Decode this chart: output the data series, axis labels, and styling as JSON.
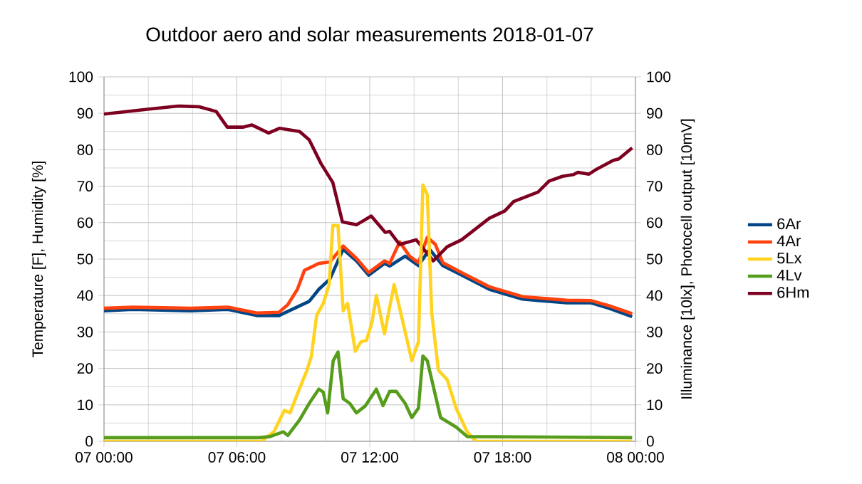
{
  "chart_data": {
    "type": "line",
    "title": "Outdoor aero and solar measurements 2018-01-07",
    "ylabel": "Temperature [F], Humidity [%]",
    "y2label": "Illuminance [10lx], Photocell output [10mV]",
    "xlim": [
      "2018-01-07T00:00",
      "2018-01-08T00:00"
    ],
    "xticks": [
      {
        "value": "2018-01-07T00:00",
        "label": "07 00:00"
      },
      {
        "value": "2018-01-07T06:00",
        "label": "07 06:00"
      },
      {
        "value": "2018-01-07T12:00",
        "label": "07 12:00"
      },
      {
        "value": "2018-01-07T18:00",
        "label": "07 18:00"
      },
      {
        "value": "2018-01-08T00:00",
        "label": "08 00:00"
      }
    ],
    "ylim": [
      0,
      100
    ],
    "yticks": [
      0,
      10,
      20,
      30,
      40,
      50,
      60,
      70,
      80,
      90,
      100
    ],
    "y2lim": [
      0,
      100
    ],
    "y2ticks": [
      0,
      10,
      20,
      30,
      40,
      50,
      60,
      70,
      80,
      90,
      100
    ],
    "grid": true,
    "legend": "right",
    "marker": "none",
    "line_style": "solid",
    "series": [
      {
        "name": "6Ar",
        "color": "#004586",
        "x": [
          "2018-01-07T00:00",
          "2018-01-07T01:18",
          "2018-01-07T03:54",
          "2018-01-07T05:36",
          "2018-01-07T06:54",
          "2018-01-07T07:54",
          "2018-01-07T08:36",
          "2018-01-07T09:16",
          "2018-01-07T09:42",
          "2018-01-07T10:12",
          "2018-01-07T10:48",
          "2018-01-07T11:24",
          "2018-01-07T11:57",
          "2018-01-07T12:40",
          "2018-01-07T12:54",
          "2018-01-07T13:36",
          "2018-01-07T14:12",
          "2018-01-07T14:42",
          "2018-01-07T15:18",
          "2018-01-07T16:09",
          "2018-01-07T17:24",
          "2018-01-07T18:54",
          "2018-01-07T20:54",
          "2018-01-07T22:00",
          "2018-01-07T22:48",
          "2018-01-07T23:51"
        ],
        "values": [
          35.8,
          36.2,
          35.8,
          36.2,
          34.5,
          34.5,
          36.5,
          38.4,
          41.7,
          44.5,
          52.7,
          49.5,
          45.6,
          48.8,
          48.1,
          50.8,
          48.2,
          52.7,
          48.2,
          45.6,
          41.7,
          39,
          38,
          38,
          36.5,
          34.2
        ]
      },
      {
        "name": "4Ar",
        "color": "#ff420e",
        "x": [
          "2018-01-07T00:00",
          "2018-01-07T01:18",
          "2018-01-07T03:54",
          "2018-01-07T05:36",
          "2018-01-07T06:54",
          "2018-01-07T07:54",
          "2018-01-07T08:18",
          "2018-01-07T08:44",
          "2018-01-07T09:03",
          "2018-01-07T09:42",
          "2018-01-07T10:12",
          "2018-01-07T10:48",
          "2018-01-07T11:24",
          "2018-01-07T11:57",
          "2018-01-07T12:40",
          "2018-01-07T12:54",
          "2018-01-07T13:21",
          "2018-01-07T13:48",
          "2018-01-07T14:12",
          "2018-01-07T14:36",
          "2018-01-07T14:58",
          "2018-01-07T15:18",
          "2018-01-07T16:09",
          "2018-01-07T17:24",
          "2018-01-07T18:54",
          "2018-01-07T20:54",
          "2018-01-07T22:00",
          "2018-01-07T22:48",
          "2018-01-07T23:51"
        ],
        "values": [
          36.5,
          36.8,
          36.5,
          36.8,
          35.2,
          35.4,
          37.5,
          41.7,
          46.9,
          48.8,
          49.2,
          53.6,
          50.2,
          46.3,
          49.5,
          48.8,
          54.7,
          50.8,
          49,
          56,
          54,
          49,
          46.3,
          42.4,
          39.7,
          38.7,
          38.6,
          37.2,
          35
        ]
      },
      {
        "name": "5Lx",
        "color": "#ffd320",
        "axis": "y2",
        "x": [
          "2018-01-07T00:00",
          "2018-01-07T07:06",
          "2018-01-07T07:40",
          "2018-01-07T08:09",
          "2018-01-07T08:24",
          "2018-01-07T08:44",
          "2018-01-07T09:10",
          "2018-01-07T09:22",
          "2018-01-07T09:36",
          "2018-01-07T09:54",
          "2018-01-07T10:10",
          "2018-01-07T10:20",
          "2018-01-07T10:34",
          "2018-01-07T10:48",
          "2018-01-07T11:00",
          "2018-01-07T11:21",
          "2018-01-07T11:36",
          "2018-01-07T11:51",
          "2018-01-07T12:06",
          "2018-01-07T12:18",
          "2018-01-07T12:40",
          "2018-01-07T13:06",
          "2018-01-07T13:30",
          "2018-01-07T13:54",
          "2018-01-07T14:12",
          "2018-01-07T14:24",
          "2018-01-07T14:36",
          "2018-01-07T14:48",
          "2018-01-07T15:06",
          "2018-01-07T15:30",
          "2018-01-07T15:54",
          "2018-01-07T16:24",
          "2018-01-07T16:48",
          "2018-01-07T23:51"
        ],
        "values": [
          0,
          0,
          2.6,
          8.5,
          7.8,
          13,
          19.5,
          23.4,
          34.5,
          37.8,
          43,
          59.2,
          59.2,
          35.8,
          37.8,
          24.7,
          27.3,
          27.7,
          32.6,
          40,
          29.5,
          43,
          32.6,
          22.1,
          27.3,
          70.3,
          67.7,
          35.2,
          19.5,
          16.9,
          9.1,
          2.6,
          0,
          0
        ]
      },
      {
        "name": "4Lv",
        "color": "#579d1c",
        "axis": "y2",
        "x": [
          "2018-01-07T00:00",
          "2018-01-07T07:00",
          "2018-01-07T07:30",
          "2018-01-07T08:06",
          "2018-01-07T08:18",
          "2018-01-07T08:50",
          "2018-01-07T09:16",
          "2018-01-07T09:42",
          "2018-01-07T09:54",
          "2018-01-07T10:06",
          "2018-01-07T10:21",
          "2018-01-07T10:34",
          "2018-01-07T10:48",
          "2018-01-07T11:06",
          "2018-01-07T11:24",
          "2018-01-07T11:48",
          "2018-01-07T12:18",
          "2018-01-07T12:36",
          "2018-01-07T12:54",
          "2018-01-07T13:12",
          "2018-01-07T13:36",
          "2018-01-07T13:54",
          "2018-01-07T14:12",
          "2018-01-07T14:24",
          "2018-01-07T14:36",
          "2018-01-07T14:54",
          "2018-01-07T15:12",
          "2018-01-07T15:54",
          "2018-01-07T16:24",
          "2018-01-07T23:51"
        ],
        "values": [
          1,
          1,
          1.3,
          2.6,
          1.6,
          5.9,
          10.4,
          14.3,
          13.5,
          7.8,
          22.1,
          24.5,
          11.7,
          10.4,
          7.8,
          9.7,
          14.3,
          9.8,
          13.7,
          13.7,
          10.4,
          6.5,
          9.1,
          23.4,
          22.1,
          14.3,
          6.5,
          3.9,
          1.3,
          1
        ]
      },
      {
        "name": "6Hm",
        "color": "#7e0021",
        "x": [
          "2018-01-07T00:00",
          "2018-01-07T01:58",
          "2018-01-07T03:21",
          "2018-01-07T04:18",
          "2018-01-07T05:04",
          "2018-01-07T05:34",
          "2018-01-07T06:16",
          "2018-01-07T06:41",
          "2018-01-07T07:26",
          "2018-01-07T07:56",
          "2018-01-07T08:50",
          "2018-01-07T09:16",
          "2018-01-07T09:48",
          "2018-01-07T10:20",
          "2018-01-07T10:46",
          "2018-01-07T11:24",
          "2018-01-07T12:04",
          "2018-01-07T12:42",
          "2018-01-07T12:54",
          "2018-01-07T13:21",
          "2018-01-07T14:06",
          "2018-01-07T14:52",
          "2018-01-07T15:30",
          "2018-01-07T16:09",
          "2018-01-07T17:24",
          "2018-01-07T18:06",
          "2018-01-07T18:30",
          "2018-01-07T19:36",
          "2018-01-07T20:06",
          "2018-01-07T20:42",
          "2018-01-07T21:12",
          "2018-01-07T21:24",
          "2018-01-07T21:54",
          "2018-01-07T22:12",
          "2018-01-07T23:00",
          "2018-01-07T23:15",
          "2018-01-07T23:51"
        ],
        "values": [
          89.8,
          91.1,
          92.0,
          91.8,
          90.5,
          86.2,
          86.2,
          86.8,
          84.6,
          85.9,
          85.0,
          82.7,
          76.2,
          71,
          60.2,
          59.4,
          61.8,
          57.3,
          57.6,
          54,
          55.3,
          49.5,
          53.4,
          55.3,
          61.2,
          63.2,
          65.8,
          68.4,
          71.4,
          72.7,
          73.2,
          73.8,
          73.3,
          74.5,
          77.1,
          77.5,
          80.5
        ]
      }
    ]
  }
}
